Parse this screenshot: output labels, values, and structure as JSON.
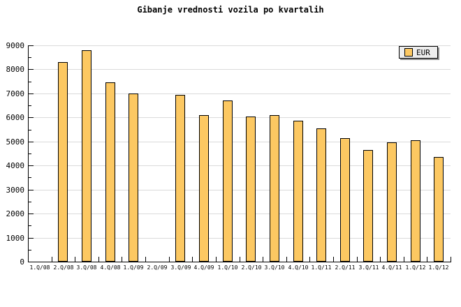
{
  "title": "Gibanje vrednosti vozila po kvartalih",
  "legend": {
    "label": "EUR"
  },
  "colors": {
    "background": "#FFFFFF",
    "bar_fill": "#FCC862",
    "bar_border": "#000000",
    "gridline": "#DADADA",
    "axis": "#000000",
    "text": "#000000",
    "legend_bg": "#EDEDED",
    "legend_border": "#000000",
    "legend_shadow": "#8F8F8F"
  },
  "chart_data": {
    "type": "bar",
    "title": "Gibanje vrednosti vozila po kvartalih",
    "categories": [
      "1.Q/08",
      "2.Q/08",
      "3.Q/08",
      "4.Q/08",
      "1.Q/09",
      "2.Q/09",
      "3.Q/09",
      "4.Q/09",
      "1.Q/10",
      "2.Q/10",
      "3.Q/10",
      "4.Q/10",
      "1.Q/11",
      "2.Q/11",
      "3.Q/11",
      "4.Q/11",
      "1.Q/12",
      "1.Q/12"
    ],
    "series": [
      {
        "name": "EUR",
        "values": [
          null,
          8300,
          8800,
          7450,
          7000,
          null,
          6950,
          6100,
          6700,
          6050,
          6100,
          5850,
          5550,
          5150,
          4650,
          4950,
          5050,
          4350
        ]
      }
    ],
    "xlabel": "",
    "ylabel": "",
    "ylim": [
      0,
      9000
    ],
    "ytick_step": 1000,
    "ytick_minor_step": 500,
    "yticks": [
      0,
      1000,
      2000,
      3000,
      4000,
      5000,
      6000,
      7000,
      8000,
      9000
    ],
    "grid": "horizontal",
    "legend_position": "top-right"
  }
}
